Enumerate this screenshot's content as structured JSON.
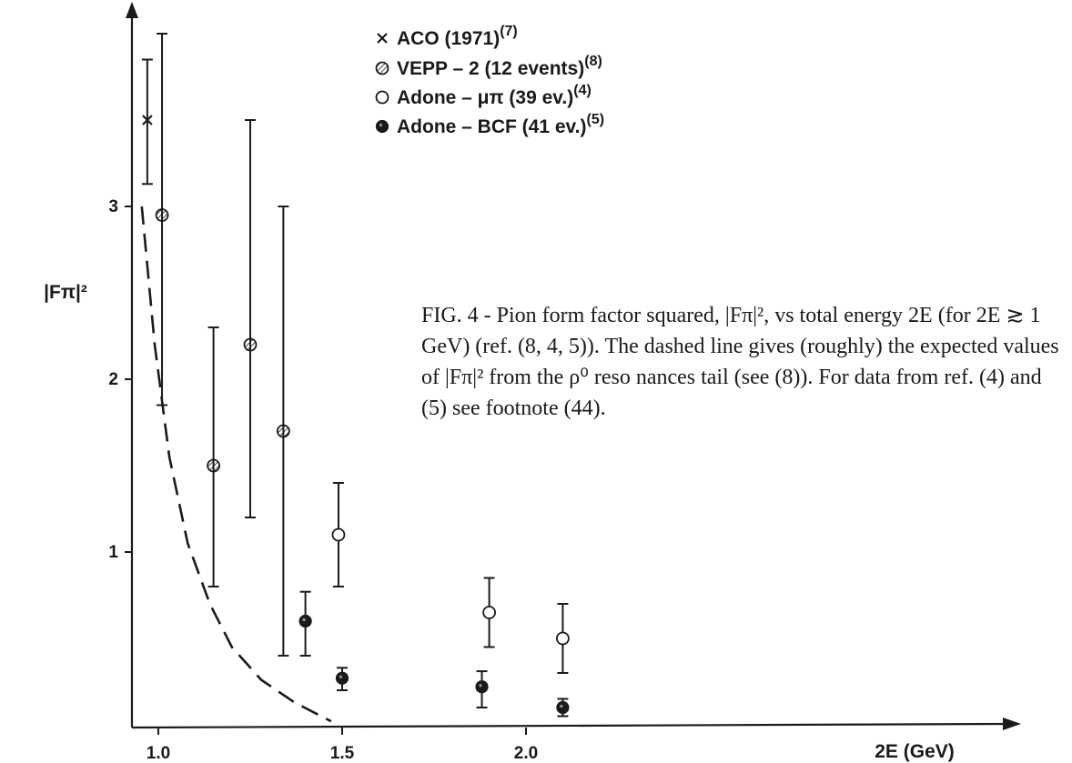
{
  "chart_data": {
    "type": "scatter",
    "xlabel": "2E  (GeV)",
    "ylabel": "|Fπ|²",
    "xlim": [
      0.95,
      2.75
    ],
    "ylim": [
      0,
      3.9
    ],
    "x_ticks": [
      {
        "value": 1.0,
        "label": "1.0"
      },
      {
        "value": 1.5,
        "label": "1.5"
      },
      {
        "value": 2.0,
        "label": "2.0"
      }
    ],
    "y_ticks": [
      {
        "value": 1,
        "label": "1"
      },
      {
        "value": 2,
        "label": "2"
      },
      {
        "value": 3,
        "label": "3"
      }
    ],
    "legend": {
      "placement": "top-center",
      "entries": [
        {
          "marker": "x",
          "label": "ACO  (1971)",
          "ref": "(7)"
        },
        {
          "marker": "hatched-circle",
          "label": "VEPP  – 2 (12 events)",
          "ref": "(8)"
        },
        {
          "marker": "open-circle",
          "label": "Adone – μπ (39 ev.)",
          "ref": "(4)"
        },
        {
          "marker": "filled-circle",
          "label": "Adone – BCF (41 ev.)",
          "ref": "(5)"
        }
      ]
    },
    "series": [
      {
        "name": "ACO (1971)",
        "marker": "x",
        "points": [
          {
            "x": 0.97,
            "y": 3.5,
            "ylo": 3.13,
            "yhi": 3.85
          }
        ]
      },
      {
        "name": "VEPP – 2 (12 events)",
        "marker": "hatched-circle",
        "points": [
          {
            "x": 1.01,
            "y": 2.95,
            "ylo": 1.85,
            "yhi": 4.0
          },
          {
            "x": 1.15,
            "y": 1.5,
            "ylo": 0.8,
            "yhi": 2.3
          },
          {
            "x": 1.25,
            "y": 2.2,
            "ylo": 1.2,
            "yhi": 3.5
          },
          {
            "x": 1.34,
            "y": 1.7,
            "ylo": 0.4,
            "yhi": 3.0
          }
        ]
      },
      {
        "name": "Adone – μπ (39 ev.)",
        "marker": "open-circle",
        "points": [
          {
            "x": 1.49,
            "y": 1.1,
            "ylo": 0.8,
            "yhi": 1.4
          },
          {
            "x": 1.9,
            "y": 0.65,
            "ylo": 0.45,
            "yhi": 0.85
          },
          {
            "x": 2.1,
            "y": 0.5,
            "ylo": 0.3,
            "yhi": 0.7
          }
        ]
      },
      {
        "name": "Adone – BCF (41 ev.)",
        "marker": "filled-circle",
        "points": [
          {
            "x": 1.4,
            "y": 0.6,
            "ylo": 0.4,
            "yhi": 0.77
          },
          {
            "x": 1.5,
            "y": 0.27,
            "ylo": 0.2,
            "yhi": 0.33
          },
          {
            "x": 1.88,
            "y": 0.22,
            "ylo": 0.1,
            "yhi": 0.31
          },
          {
            "x": 2.1,
            "y": 0.1,
            "ylo": 0.05,
            "yhi": 0.15
          }
        ]
      }
    ],
    "curve": {
      "style": "dashed",
      "points": [
        {
          "x": 0.955,
          "y": 3.0
        },
        {
          "x": 0.99,
          "y": 2.2
        },
        {
          "x": 1.03,
          "y": 1.55
        },
        {
          "x": 1.08,
          "y": 1.05
        },
        {
          "x": 1.14,
          "y": 0.7
        },
        {
          "x": 1.2,
          "y": 0.45
        },
        {
          "x": 1.28,
          "y": 0.26
        },
        {
          "x": 1.37,
          "y": 0.13
        },
        {
          "x": 1.47,
          "y": 0.02
        }
      ]
    }
  },
  "caption": "FIG. 4 - Pion form factor squared, |Fπ|², vs total energy 2E (for 2E ≳ 1 GeV) (ref. (8, 4, 5)). The dashed line gives (roughly) the expected values of |Fπ|² from the ρ⁰ reso nances tail (see (8)). For data from ref. (4) and (5) see footnote (44)."
}
